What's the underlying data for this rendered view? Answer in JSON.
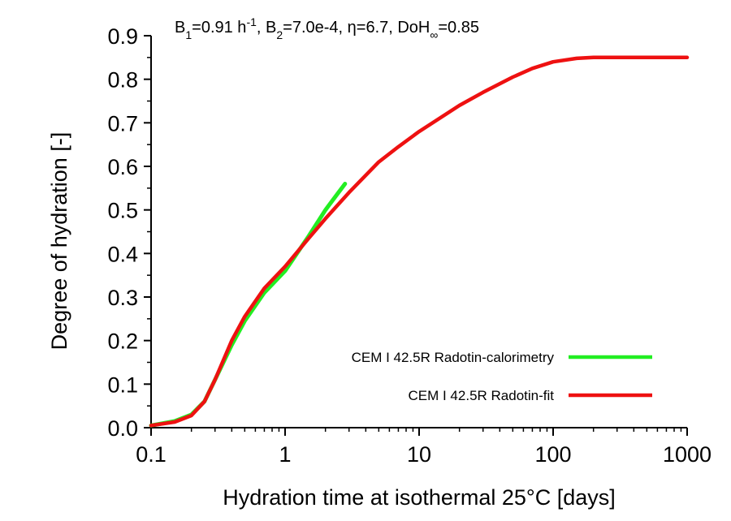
{
  "chart_data": {
    "type": "line",
    "title_parts": [
      "B",
      "1",
      "=0.91 h",
      "-1",
      ", B",
      "2",
      "=7.0e-4, η=6.7, DoH",
      "∞",
      "=0.85"
    ],
    "xlabel": "Hydration time at isothermal 25°C [days]",
    "ylabel": "Degree of hydration [-]",
    "x_scale": "log",
    "xlim": [
      0.1,
      1000
    ],
    "ylim": [
      0,
      0.9
    ],
    "x_ticks": [
      0.1,
      1,
      10,
      100,
      1000
    ],
    "x_tick_labels": [
      "0.1",
      "1",
      "10",
      "100",
      "1000"
    ],
    "y_ticks": [
      0,
      0.1,
      0.2,
      0.3,
      0.4,
      0.5,
      0.6,
      0.7,
      0.8,
      0.9
    ],
    "y_tick_labels": [
      "0.0",
      "0.1",
      "0.2",
      "0.3",
      "0.4",
      "0.5",
      "0.6",
      "0.7",
      "0.8",
      "0.9"
    ],
    "grid": false,
    "legend_position": "bottom-right",
    "series": [
      {
        "name": "CEM I 42.5R Radotin-calorimetry",
        "color": "#22ee22",
        "x": [
          0.1,
          0.15,
          0.2,
          0.25,
          0.3,
          0.4,
          0.5,
          0.7,
          1.0,
          1.5,
          2.0,
          2.5,
          2.8
        ],
        "y": [
          0.005,
          0.015,
          0.03,
          0.06,
          0.11,
          0.19,
          0.245,
          0.31,
          0.36,
          0.44,
          0.5,
          0.54,
          0.56
        ]
      },
      {
        "name": "CEM I 42.5R Radotin-fit",
        "color": "#ee1111",
        "x": [
          0.1,
          0.15,
          0.2,
          0.25,
          0.3,
          0.4,
          0.5,
          0.7,
          1.0,
          1.5,
          2.0,
          3.0,
          5.0,
          7.0,
          10,
          20,
          30,
          50,
          70,
          100,
          150,
          200,
          300,
          500,
          1000
        ],
        "y": [
          0.005,
          0.013,
          0.028,
          0.06,
          0.11,
          0.2,
          0.255,
          0.32,
          0.37,
          0.435,
          0.48,
          0.54,
          0.61,
          0.645,
          0.68,
          0.74,
          0.77,
          0.805,
          0.825,
          0.84,
          0.848,
          0.85,
          0.85,
          0.85,
          0.85
        ]
      }
    ]
  }
}
